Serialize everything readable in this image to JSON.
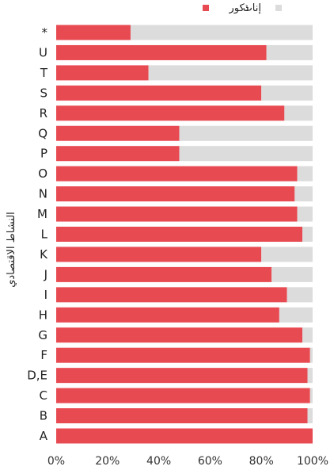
{
  "chart_data": {
    "type": "bar",
    "orientation": "horizontal",
    "stacked": true,
    "percent": true,
    "ylabel": "النشاط الاقتصادي",
    "categories": [
      "*",
      "U",
      "T",
      "S",
      "R",
      "Q",
      "P",
      "O",
      "N",
      "M",
      "L",
      "K",
      "J",
      "I",
      "H",
      "G",
      "F",
      "D,E",
      "C",
      "B",
      "A"
    ],
    "series": [
      {
        "name": "ذكور",
        "color": "#e84a52",
        "values": [
          29,
          82,
          36,
          80,
          89,
          48,
          48,
          94,
          93,
          94,
          96,
          80,
          84,
          90,
          87,
          96,
          99,
          98,
          99,
          98,
          100
        ]
      },
      {
        "name": "إناث",
        "color": "#dcdcdc",
        "values": [
          71,
          18,
          64,
          20,
          11,
          52,
          52,
          6,
          7,
          6,
          4,
          20,
          16,
          10,
          13,
          4,
          1,
          2,
          1,
          2,
          0
        ]
      }
    ],
    "xlim": [
      0,
      100
    ],
    "xticks": [
      "0%",
      "20%",
      "40%",
      "60%",
      "80%",
      "100%"
    ],
    "legend": "top"
  }
}
